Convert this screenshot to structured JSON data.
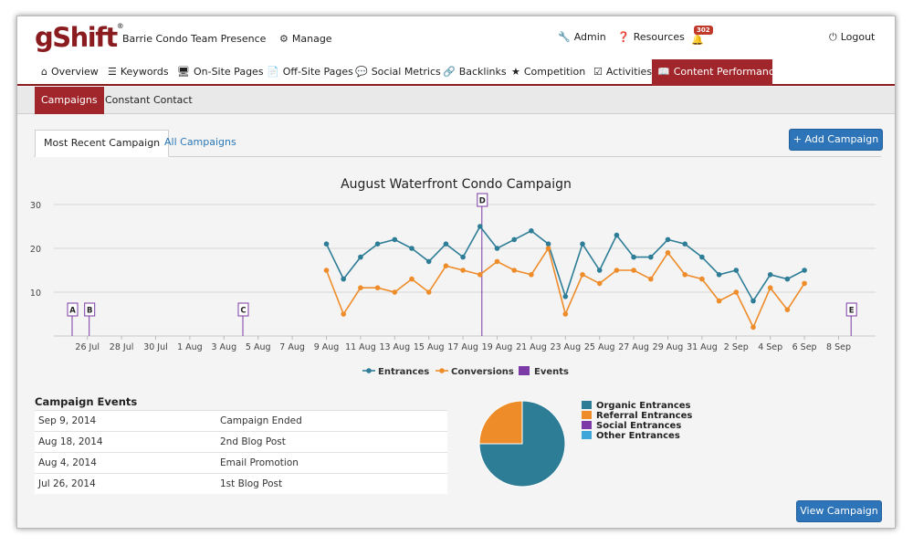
{
  "app": {
    "logo_text": "gShift",
    "logo_reg": "®",
    "account_name": "Barrie Condo Team Presence",
    "manage_label": "Manage"
  },
  "top_links": {
    "admin": "Admin",
    "resources": "Resources",
    "notifications_count": "302",
    "logout": "Logout"
  },
  "nav": {
    "items": [
      {
        "label": "Overview",
        "icon": "home-icon"
      },
      {
        "label": "Keywords",
        "icon": "keywords-icon"
      },
      {
        "label": "On-Site Pages",
        "icon": "monitor-icon"
      },
      {
        "label": "Off-Site Pages",
        "icon": "document-icon"
      },
      {
        "label": "Social Metrics",
        "icon": "comment-icon"
      },
      {
        "label": "Backlinks",
        "icon": "link-icon"
      },
      {
        "label": "Competition",
        "icon": "star-icon"
      },
      {
        "label": "Activities",
        "icon": "checkbox-icon"
      },
      {
        "label": "Content Performance",
        "icon": "book-icon",
        "active": true
      }
    ]
  },
  "subnav": {
    "items": [
      {
        "label": "Campaigns",
        "active": true
      },
      {
        "label": "Constant Contact"
      }
    ]
  },
  "tabs": {
    "most_recent": "Most Recent Campaign",
    "all": "All Campaigns"
  },
  "add_campaign_label": "Add Campaign",
  "view_campaign_label": "View Campaign",
  "events_section": {
    "title": "Campaign Events",
    "rows": [
      {
        "date": "Sep 9, 2014",
        "event": "Campaign Ended"
      },
      {
        "date": "Aug 18, 2014",
        "event": "2nd Blog Post"
      },
      {
        "date": "Aug 4, 2014",
        "event": "Email Promotion"
      },
      {
        "date": "Jul 26, 2014",
        "event": "1st Blog Post"
      }
    ]
  },
  "colors": {
    "brand": "#a1262b",
    "entrances": "#2e7d97",
    "conversions": "#ee8c2a",
    "events": "#7b3aa5",
    "button": "#2e74b8"
  },
  "chart_data": [
    {
      "type": "line",
      "title": "August Waterfront Condo Campaign",
      "ylim": [
        0,
        30
      ],
      "yticks": [
        "10",
        "20",
        "30"
      ],
      "x_tick_labels": [
        "26 Jul",
        "28 Jul",
        "30 Jul",
        "1 Aug",
        "3 Aug",
        "5 Aug",
        "7 Aug",
        "9 Aug",
        "11 Aug",
        "13 Aug",
        "15 Aug",
        "17 Aug",
        "19 Aug",
        "21 Aug",
        "23 Aug",
        "25 Aug",
        "27 Aug",
        "29 Aug",
        "31 Aug",
        "2 Sep",
        "4 Sep",
        "6 Sep",
        "8 Sep"
      ],
      "x": [
        "Aug 9",
        "Aug 10",
        "Aug 11",
        "Aug 12",
        "Aug 13",
        "Aug 14",
        "Aug 15",
        "Aug 16",
        "Aug 17",
        "Aug 18",
        "Aug 19",
        "Aug 20",
        "Aug 21",
        "Aug 22",
        "Aug 23",
        "Aug 24",
        "Aug 25",
        "Aug 26",
        "Aug 27",
        "Aug 28",
        "Aug 29",
        "Aug 30",
        "Aug 31",
        "Sep 1",
        "Sep 2",
        "Sep 3",
        "Sep 4",
        "Sep 5",
        "Sep 6"
      ],
      "series": [
        {
          "name": "Entrances",
          "values": [
            21,
            13,
            18,
            21,
            22,
            20,
            17,
            21,
            18,
            25,
            20,
            22,
            24,
            21,
            9,
            21,
            15,
            23,
            18,
            18,
            22,
            21,
            18,
            14,
            15,
            8,
            14,
            13,
            15
          ]
        },
        {
          "name": "Conversions",
          "values": [
            15,
            5,
            11,
            11,
            10,
            13,
            10,
            16,
            15,
            14,
            17,
            15,
            14,
            20,
            5,
            14,
            12,
            15,
            15,
            13,
            19,
            14,
            13,
            8,
            10,
            2,
            11,
            6,
            12
          ]
        }
      ],
      "events": [
        {
          "label": "A",
          "date": "Jul 25"
        },
        {
          "label": "B",
          "date": "Jul 26"
        },
        {
          "label": "C",
          "date": "Aug 4"
        },
        {
          "label": "D",
          "date": "Aug 18"
        },
        {
          "label": "E",
          "date": "Sep 9"
        }
      ],
      "legend": [
        "Entrances",
        "Conversions",
        "Events"
      ],
      "legend_position": "bottom-center",
      "grid": true
    },
    {
      "type": "pie",
      "labels": [
        "Organic Entrances",
        "Referral Entrances",
        "Social Entrances",
        "Other Entrances"
      ],
      "values": [
        75,
        25,
        0,
        0
      ],
      "colors": [
        "#2e7d97",
        "#ee8c2a",
        "#7b3aa5",
        "#3fa6d9"
      ],
      "legend_position": "right"
    }
  ]
}
